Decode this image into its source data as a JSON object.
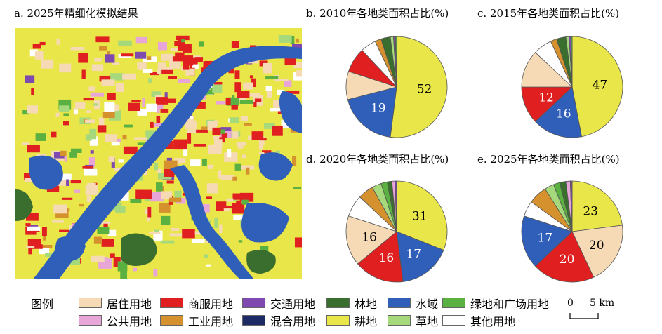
{
  "titles": {
    "a": "a. 2025年精细化模拟结果",
    "b": "b. 2010年各地类面积占比(%)",
    "c": "c. 2015年各地类面积占比(%)",
    "d": "d. 2020年各地类面积占比(%)",
    "e": "e. 2025年各地类面积占比(%)"
  },
  "legend_title": "图例",
  "categories": [
    "居住用地",
    "商服用地",
    "交通用地",
    "林地",
    "水域",
    "绿地和广场用地",
    "公共用地",
    "工业用地",
    "混合用地",
    "耕地",
    "草地",
    "其他用地"
  ],
  "colors": {
    "居住用地": "#f6dab6",
    "商服用地": "#e02020",
    "交通用地": "#7e4ab0",
    "林地": "#3a6e2e",
    "水域": "#2f5fb8",
    "绿地和广场用地": "#5ab040",
    "公共用地": "#e8a6d8",
    "工业用地": "#d5912e",
    "混合用地": "#1e2a66",
    "耕地": "#e9e64a",
    "草地": "#a6d97c",
    "其他用地": "#ffffff"
  },
  "scale": {
    "zero": "0",
    "dist": "5 km"
  },
  "chart_data": [
    {
      "type": "pie",
      "title": "b. 2010年各地类面积占比(%)",
      "slices": [
        {
          "name": "耕地",
          "value": 52,
          "label": "52"
        },
        {
          "name": "水域",
          "value": 19,
          "label": "19"
        },
        {
          "name": "居住用地",
          "value": 9,
          "label": ""
        },
        {
          "name": "商服用地",
          "value": 8,
          "label": ""
        },
        {
          "name": "其他用地",
          "value": 5,
          "label": ""
        },
        {
          "name": "工业用地",
          "value": 2,
          "label": ""
        },
        {
          "name": "林地",
          "value": 3,
          "label": ""
        },
        {
          "name": "草地",
          "value": 1,
          "label": ""
        },
        {
          "name": "交通用地",
          "value": 0.6,
          "label": ""
        },
        {
          "name": "绿地和广场用地",
          "value": 0.4,
          "label": ""
        }
      ]
    },
    {
      "type": "pie",
      "title": "c. 2015年各地类面积占比(%)",
      "slices": [
        {
          "name": "耕地",
          "value": 47,
          "label": "47"
        },
        {
          "name": "水域",
          "value": 16,
          "label": "16"
        },
        {
          "name": "商服用地",
          "value": 12,
          "label": "12"
        },
        {
          "name": "居住用地",
          "value": 12,
          "label": ""
        },
        {
          "name": "其他用地",
          "value": 6,
          "label": ""
        },
        {
          "name": "工业用地",
          "value": 2,
          "label": ""
        },
        {
          "name": "林地",
          "value": 3,
          "label": ""
        },
        {
          "name": "草地",
          "value": 1,
          "label": ""
        },
        {
          "name": "交通用地",
          "value": 0.6,
          "label": ""
        },
        {
          "name": "绿地和广场用地",
          "value": 0.4,
          "label": ""
        }
      ]
    },
    {
      "type": "pie",
      "title": "d. 2020年各地类面积占比(%)",
      "slices": [
        {
          "name": "耕地",
          "value": 31,
          "label": "31"
        },
        {
          "name": "水域",
          "value": 17,
          "label": "17"
        },
        {
          "name": "商服用地",
          "value": 16,
          "label": "16"
        },
        {
          "name": "居住用地",
          "value": 16,
          "label": "16"
        },
        {
          "name": "其他用地",
          "value": 7,
          "label": ""
        },
        {
          "name": "工业用地",
          "value": 5,
          "label": ""
        },
        {
          "name": "草地",
          "value": 3,
          "label": ""
        },
        {
          "name": "绿地和广场用地",
          "value": 2,
          "label": ""
        },
        {
          "name": "林地",
          "value": 1.5,
          "label": ""
        },
        {
          "name": "公共用地",
          "value": 1,
          "label": ""
        },
        {
          "name": "交通用地",
          "value": 0.5,
          "label": ""
        }
      ]
    },
    {
      "type": "pie",
      "title": "e. 2025年各地类面积占比(%)",
      "slices": [
        {
          "name": "耕地",
          "value": 23,
          "label": "23"
        },
        {
          "name": "居住用地",
          "value": 20,
          "label": "20"
        },
        {
          "name": "商服用地",
          "value": 20,
          "label": "20"
        },
        {
          "name": "水域",
          "value": 17,
          "label": "17"
        },
        {
          "name": "其他用地",
          "value": 5,
          "label": ""
        },
        {
          "name": "工业用地",
          "value": 6,
          "label": ""
        },
        {
          "name": "草地",
          "value": 3,
          "label": ""
        },
        {
          "name": "绿地和广场用地",
          "value": 2,
          "label": ""
        },
        {
          "name": "林地",
          "value": 2,
          "label": ""
        },
        {
          "name": "公共用地",
          "value": 1.4,
          "label": ""
        },
        {
          "name": "交通用地",
          "value": 0.6,
          "label": ""
        }
      ]
    }
  ]
}
